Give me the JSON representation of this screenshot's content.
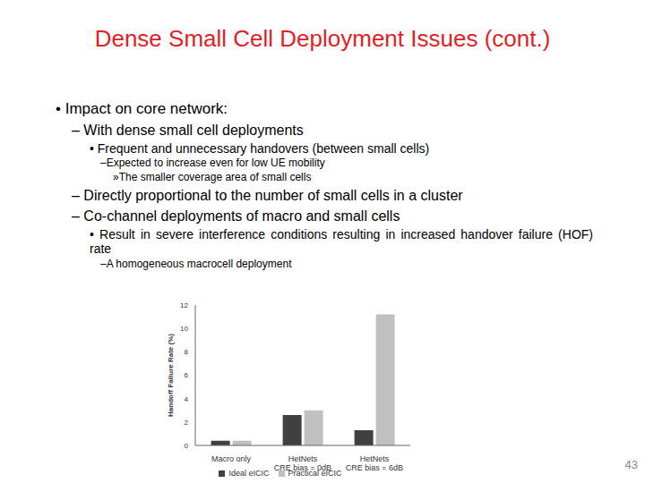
{
  "title": "Dense Small Cell Deployment Issues (cont.)",
  "bullets": [
    {
      "text": "• Impact on core network:",
      "children": [
        {
          "text": "– With dense small cell deployments",
          "children": [
            {
              "text": "• Frequent and unnecessary handovers (between small cells)",
              "children": [
                {
                  "text": "–Expected to increase even for low UE mobility",
                  "children": [
                    {
                      "text": "»The smaller coverage area of small cells",
                      "children": []
                    }
                  ]
                }
              ]
            }
          ]
        },
        {
          "text": "– Directly proportional to the number of small cells in a cluster",
          "children": []
        },
        {
          "text": "– Co-channel deployments of macro and small cells",
          "children": [
            {
              "text": "• Result in severe interference conditions resulting in increased handover failure (HOF) rate",
              "children": [
                {
                  "text": "–A homogeneous macrocell deployment",
                  "children": []
                }
              ]
            }
          ]
        }
      ]
    }
  ],
  "page_number": "43",
  "chart_data": {
    "type": "bar",
    "y_label": "Handoff Failure Rate (%)",
    "categories": [
      "Macro only",
      "HetNets\nCRE bias = 0dB",
      "HetNets\nCRE bias = 6dB"
    ],
    "series": [
      {
        "name": "Ideal eICIC",
        "color": "#404040",
        "values": [
          0.4,
          2.6,
          1.3
        ]
      },
      {
        "name": "Practical eICIC",
        "color": "#c0c0c0",
        "values": [
          0.4,
          3.0,
          11.2
        ]
      }
    ],
    "ylim": [
      0,
      12
    ],
    "yticks": [
      0,
      2,
      4,
      6,
      8,
      10,
      12
    ],
    "grid": false,
    "legend": "bottom"
  }
}
